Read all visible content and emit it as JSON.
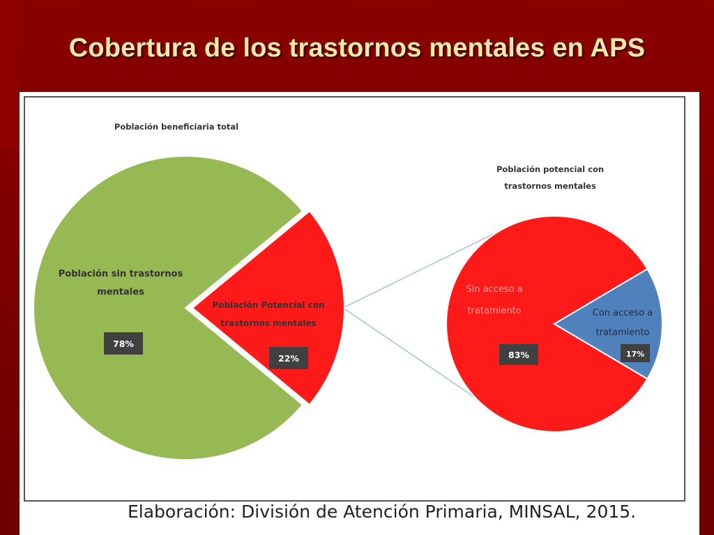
{
  "slide": {
    "title": "Cobertura de los trastornos mentales en APS"
  },
  "chart_data": [
    {
      "type": "pie",
      "title": "Población beneficiaria total",
      "slices": [
        {
          "label": "Población sin trastornos mentales",
          "label_lines": [
            "Población sin trastornos",
            "mentales"
          ],
          "value": 78,
          "value_label": "78%",
          "color": "#96b954"
        },
        {
          "label": "Población Potencial con trastornos mentales",
          "label_lines": [
            "Población Potencial con",
            "trastornos mentales"
          ],
          "value": 22,
          "value_label": "22%",
          "color": "#ff1a1a"
        }
      ]
    },
    {
      "type": "pie",
      "title": "Población potencial con trastornos mentales",
      "title_lines": [
        "Población potencial con",
        "trastornos mentales"
      ],
      "slices": [
        {
          "label": "Sin acceso a tratamiento",
          "label_lines": [
            "Sin acceso a",
            "tratamiento"
          ],
          "value": 83,
          "value_label": "83%",
          "color": "#ff1a1a"
        },
        {
          "label": "Con acceso a tratamiento",
          "label_lines": [
            "Con acceso a",
            "tratamiento"
          ],
          "value": 17,
          "value_label": "17%",
          "color": "#4f81bd"
        }
      ]
    }
  ],
  "source": "Elaboración: División de Atención Primaria, MINSAL, 2015."
}
